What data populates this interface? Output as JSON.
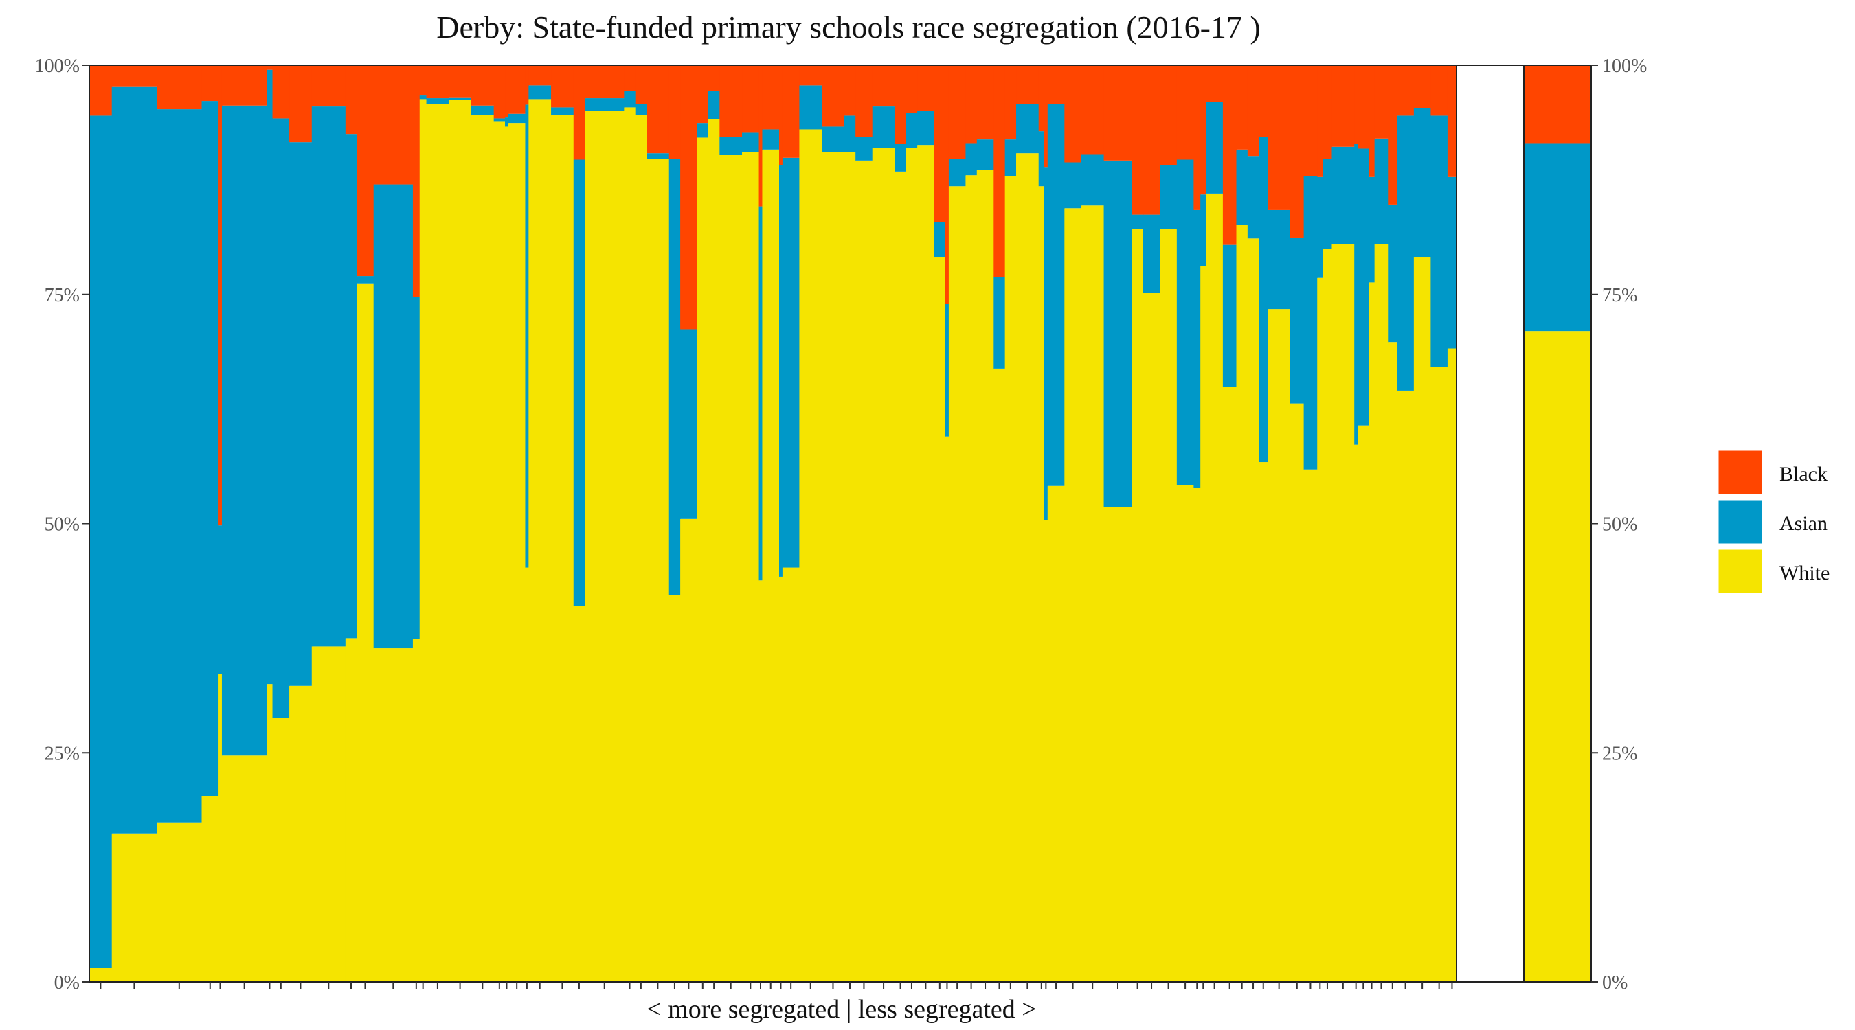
{
  "colors": {
    "black": "#FF4500",
    "asian": "#0098C8",
    "white": "#F5E400",
    "frame": "#222222"
  },
  "chart_data": {
    "type": "bar",
    "stacked": true,
    "title": "Derby: State-funded primary schools race segregation (2016-17 )",
    "xlabel": "< more segregated | less segregated >",
    "ylabel": "",
    "ylim": [
      0,
      100
    ],
    "yticks": [
      "0%",
      "25%",
      "50%",
      "75%",
      "100%"
    ],
    "legend": {
      "position": "right",
      "entries": [
        "Black",
        "Asian",
        "White"
      ]
    },
    "series_order": [
      "White",
      "Asian",
      "Black"
    ],
    "schools": [
      {
        "w": 2,
        "white": 1.5,
        "asian": 93.0,
        "black": 5.5
      },
      {
        "w": 4,
        "white": 16.2,
        "asian": 81.5,
        "black": 2.3
      },
      {
        "w": 4,
        "white": 17.4,
        "asian": 77.8,
        "black": 4.8
      },
      {
        "w": 1.5,
        "white": 20.3,
        "asian": 75.8,
        "black": 3.9
      },
      {
        "w": 0.3,
        "white": 33.6,
        "asian": 16.2,
        "black": 50.2
      },
      {
        "w": 4,
        "white": 24.7,
        "asian": 70.9,
        "black": 4.4
      },
      {
        "w": 0.5,
        "white": 32.5,
        "asian": 67.0,
        "black": 0.5
      },
      {
        "w": 1.5,
        "white": 28.8,
        "asian": 65.4,
        "black": 5.8
      },
      {
        "w": 2,
        "white": 32.3,
        "asian": 59.3,
        "black": 8.4
      },
      {
        "w": 3,
        "white": 36.6,
        "asian": 58.9,
        "black": 4.5
      },
      {
        "w": 1,
        "white": 37.5,
        "asian": 55.0,
        "black": 7.5
      },
      {
        "w": 1.5,
        "white": 76.2,
        "asian": 0.8,
        "black": 23.0
      },
      {
        "w": 3.5,
        "white": 36.4,
        "asian": 50.6,
        "black": 13.0
      },
      {
        "w": 0.6,
        "white": 37.4,
        "asian": 37.3,
        "black": 25.3
      },
      {
        "w": 0.6,
        "white": 96.3,
        "asian": 0.4,
        "black": 3.3
      },
      {
        "w": 2,
        "white": 95.8,
        "asian": 0.6,
        "black": 3.6
      },
      {
        "w": 2,
        "white": 96.2,
        "asian": 0.3,
        "black": 3.5
      },
      {
        "w": 2,
        "white": 94.6,
        "asian": 1.0,
        "black": 4.4
      },
      {
        "w": 1,
        "white": 93.9,
        "asian": 0.3,
        "black": 5.8
      },
      {
        "w": 0.3,
        "white": 93.3,
        "asian": 1.0,
        "black": 5.7
      },
      {
        "w": 1.5,
        "white": 93.7,
        "asian": 1.0,
        "black": 5.3
      },
      {
        "w": 0.3,
        "white": 45.2,
        "asian": 50.5,
        "black": 4.3
      },
      {
        "w": 2,
        "white": 96.3,
        "asian": 1.5,
        "black": 2.2
      },
      {
        "w": 2,
        "white": 94.6,
        "asian": 0.8,
        "black": 4.6
      },
      {
        "w": 1,
        "white": 41.0,
        "asian": 48.7,
        "black": 10.3
      },
      {
        "w": 3.5,
        "white": 95.0,
        "asian": 1.4,
        "black": 3.6
      },
      {
        "w": 1,
        "white": 95.4,
        "asian": 1.8,
        "black": 2.8
      },
      {
        "w": 1,
        "white": 94.6,
        "asian": 1.2,
        "black": 4.2
      },
      {
        "w": 2,
        "white": 89.8,
        "asian": 0.6,
        "black": 9.6
      },
      {
        "w": 1,
        "white": 42.2,
        "asian": 47.6,
        "black": 10.2
      },
      {
        "w": 1.5,
        "white": 50.5,
        "asian": 20.7,
        "black": 28.8
      },
      {
        "w": 1,
        "white": 92.1,
        "asian": 1.6,
        "black": 6.3
      },
      {
        "w": 1,
        "white": 94.1,
        "asian": 3.1,
        "black": 2.8
      },
      {
        "w": 2,
        "white": 90.2,
        "asian": 2.0,
        "black": 7.8
      },
      {
        "w": 1.5,
        "white": 90.5,
        "asian": 2.2,
        "black": 7.3
      },
      {
        "w": 0.3,
        "white": 43.8,
        "asian": 40.8,
        "black": 15.4
      },
      {
        "w": 1.5,
        "white": 90.8,
        "asian": 2.2,
        "black": 7.0
      },
      {
        "w": 0.3,
        "white": 44.2,
        "asian": 44.9,
        "black": 10.9
      },
      {
        "w": 1.5,
        "white": 45.2,
        "asian": 44.7,
        "black": 10.1
      },
      {
        "w": 2,
        "white": 93.0,
        "asian": 4.8,
        "black": 2.2
      },
      {
        "w": 2,
        "white": 90.5,
        "asian": 2.8,
        "black": 6.7
      },
      {
        "w": 1,
        "white": 90.5,
        "asian": 4.0,
        "black": 5.5
      },
      {
        "w": 1.5,
        "white": 89.6,
        "asian": 2.6,
        "black": 7.8
      },
      {
        "w": 2,
        "white": 91.0,
        "asian": 4.5,
        "black": 4.5
      },
      {
        "w": 1,
        "white": 88.4,
        "asian": 3.0,
        "black": 8.6
      },
      {
        "w": 1,
        "white": 91.0,
        "asian": 3.8,
        "black": 5.2
      },
      {
        "w": 1.5,
        "white": 91.3,
        "asian": 3.7,
        "black": 5.0
      },
      {
        "w": 1,
        "white": 79.1,
        "asian": 3.8,
        "black": 17.1
      },
      {
        "w": 0.3,
        "white": 59.5,
        "asian": 14.5,
        "black": 26.0
      },
      {
        "w": 1.5,
        "white": 86.8,
        "asian": 3.0,
        "black": 10.2
      },
      {
        "w": 1,
        "white": 88.0,
        "asian": 3.5,
        "black": 8.5
      },
      {
        "w": 1.5,
        "white": 88.6,
        "asian": 3.3,
        "black": 8.1
      },
      {
        "w": 1,
        "white": 66.9,
        "asian": 10.0,
        "black": 23.1
      },
      {
        "w": 1,
        "white": 87.9,
        "asian": 4.0,
        "black": 8.1
      },
      {
        "w": 2,
        "white": 90.4,
        "asian": 5.4,
        "black": 4.2
      },
      {
        "w": 0.5,
        "white": 86.8,
        "asian": 6.0,
        "black": 7.2
      },
      {
        "w": 0.3,
        "white": 50.4,
        "asian": 38.5,
        "black": 11.1
      },
      {
        "w": 1.5,
        "white": 54.1,
        "asian": 41.7,
        "black": 4.2
      },
      {
        "w": 1.5,
        "white": 84.4,
        "asian": 5.0,
        "black": 10.6
      },
      {
        "w": 2,
        "white": 84.7,
        "asian": 5.6,
        "black": 9.7
      },
      {
        "w": 2.5,
        "white": 51.8,
        "asian": 37.8,
        "black": 10.4
      },
      {
        "w": 1,
        "white": 82.1,
        "asian": 1.6,
        "black": 16.3
      },
      {
        "w": 1.5,
        "white": 75.2,
        "asian": 8.5,
        "black": 16.3
      },
      {
        "w": 1.5,
        "white": 82.1,
        "asian": 7.0,
        "black": 10.9
      },
      {
        "w": 1.5,
        "white": 54.2,
        "asian": 35.5,
        "black": 10.3
      },
      {
        "w": 0.6,
        "white": 53.9,
        "asian": 30.3,
        "black": 15.8
      },
      {
        "w": 0.5,
        "white": 78.1,
        "asian": 7.8,
        "black": 14.1
      },
      {
        "w": 1.5,
        "white": 86.0,
        "asian": 10.0,
        "black": 4.0
      },
      {
        "w": 1.2,
        "white": 64.9,
        "asian": 15.5,
        "black": 19.6
      },
      {
        "w": 1,
        "white": 82.6,
        "asian": 8.2,
        "black": 9.2
      },
      {
        "w": 1,
        "white": 81.1,
        "asian": 9.0,
        "black": 9.9
      },
      {
        "w": 0.8,
        "white": 56.7,
        "asian": 35.5,
        "black": 7.8
      },
      {
        "w": 2,
        "white": 73.4,
        "asian": 10.8,
        "black": 15.8
      },
      {
        "w": 1.2,
        "white": 63.1,
        "asian": 18.1,
        "black": 18.8
      },
      {
        "w": 1.2,
        "white": 55.9,
        "asian": 32.0,
        "black": 12.1
      },
      {
        "w": 0.5,
        "white": 76.8,
        "asian": 11.0,
        "black": 12.2
      },
      {
        "w": 0.8,
        "white": 80.0,
        "asian": 9.8,
        "black": 10.2
      },
      {
        "w": 2,
        "white": 80.5,
        "asian": 10.6,
        "black": 8.9
      },
      {
        "w": 0.3,
        "white": 58.6,
        "asian": 32.8,
        "black": 8.6
      },
      {
        "w": 1,
        "white": 60.7,
        "asian": 30.2,
        "black": 9.1
      },
      {
        "w": 0.5,
        "white": 76.3,
        "asian": 11.5,
        "black": 12.2
      },
      {
        "w": 1.2,
        "white": 80.5,
        "asian": 11.5,
        "black": 8.0
      },
      {
        "w": 0.8,
        "white": 69.8,
        "asian": 15.0,
        "black": 15.2
      },
      {
        "w": 1.5,
        "white": 64.5,
        "asian": 30.0,
        "black": 5.5
      },
      {
        "w": 1.5,
        "white": 79.1,
        "asian": 16.2,
        "black": 4.7
      },
      {
        "w": 1.5,
        "white": 67.1,
        "asian": 27.4,
        "black": 5.5
      },
      {
        "w": 0.8,
        "white": 69.1,
        "asian": 18.7,
        "black": 12.2
      }
    ],
    "overall": {
      "label": "Derby",
      "white": 71.0,
      "asian": 20.5,
      "black": 8.5
    }
  }
}
